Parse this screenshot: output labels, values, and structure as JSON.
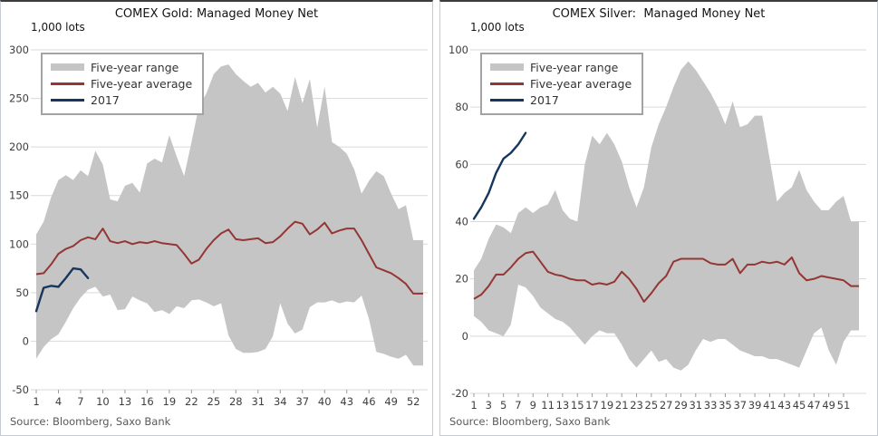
{
  "legend": {
    "items": [
      {
        "label": "Five-year range",
        "swatch": "area",
        "color": "#c5c5c5"
      },
      {
        "label": "Five-year average",
        "swatch": "line",
        "color": "#943634"
      },
      {
        "label": "2017",
        "swatch": "line",
        "color": "#17365d"
      }
    ]
  },
  "chart_data": [
    {
      "id": "gold",
      "type": "area",
      "title": "COMEX Gold: Managed Money Net",
      "units_label": "1,000 lots",
      "source": "Source: Bloomberg, Saxo Bank",
      "xlabel": "",
      "ylabel": "1,000 lots",
      "ylim": [
        -50,
        300
      ],
      "yticks": [
        300,
        250,
        200,
        150,
        100,
        50,
        0,
        -50
      ],
      "xticks": [
        1,
        4,
        7,
        10,
        13,
        16,
        19,
        22,
        25,
        28,
        31,
        34,
        37,
        40,
        43,
        46,
        49,
        52
      ],
      "grid": true,
      "grid_color": "#d9d9d9",
      "tick_mark_color": "#9b9b9b",
      "legend_position": "top-left",
      "x": [
        1,
        2,
        3,
        4,
        5,
        6,
        7,
        8,
        9,
        10,
        11,
        12,
        13,
        14,
        15,
        16,
        17,
        18,
        19,
        20,
        21,
        22,
        23,
        24,
        25,
        26,
        27,
        28,
        29,
        30,
        31,
        32,
        33,
        34,
        35,
        36,
        37,
        38,
        39,
        40,
        41,
        42,
        43,
        44,
        45,
        46,
        47,
        48,
        49,
        50,
        51,
        52
      ],
      "series": [
        {
          "name": "Five-year range",
          "type": "area",
          "color": "#c5c5c5",
          "upper": [
            110,
            123,
            148,
            166,
            171,
            166,
            176,
            170,
            196,
            182,
            146,
            144,
            160,
            163,
            153,
            183,
            188,
            184,
            212,
            190,
            170,
            205,
            242,
            255,
            275,
            283,
            285,
            275,
            268,
            262,
            266,
            256,
            262,
            255,
            237,
            272,
            245,
            270,
            220,
            262,
            205,
            200,
            193,
            177,
            152,
            165,
            175,
            170,
            152,
            136,
            140,
            104
          ],
          "lower": [
            -18,
            -6,
            2,
            7,
            20,
            34,
            45,
            53,
            56,
            46,
            48,
            32,
            33,
            46,
            42,
            39,
            30,
            32,
            28,
            36,
            34,
            42,
            43,
            40,
            36,
            39,
            6,
            -8,
            -12,
            -12,
            -11,
            -8,
            5,
            39,
            18,
            8,
            12,
            35,
            40,
            40,
            42,
            39,
            41,
            40,
            47,
            23,
            -11,
            -13,
            -16,
            -18,
            -14,
            -25
          ]
        },
        {
          "name": "Five-year average",
          "type": "line",
          "color": "#943634",
          "values": [
            69,
            70,
            79,
            90,
            95,
            98,
            104,
            107,
            105,
            116,
            103,
            101,
            103,
            100,
            102,
            101,
            103,
            101,
            100,
            99,
            90,
            80,
            84,
            95,
            104,
            111,
            115,
            105,
            104,
            105,
            106,
            101,
            102,
            108,
            116,
            123,
            121,
            110,
            115,
            122,
            111,
            114,
            116,
            116,
            104,
            90,
            76,
            73,
            70,
            65,
            59,
            49
          ]
        },
        {
          "name": "2017",
          "type": "line",
          "color": "#17365d",
          "x": [
            1,
            2,
            3,
            4,
            5,
            6,
            7,
            8
          ],
          "values": [
            31,
            55,
            57,
            56,
            65,
            75,
            74,
            65
          ]
        }
      ]
    },
    {
      "id": "silver",
      "type": "area",
      "title": "COMEX Silver:  Managed Money Net",
      "units_label": "1,000 lots",
      "source": "Source: Bloomberg, Saxo Bank",
      "xlabel": "",
      "ylabel": "1,000 lots",
      "ylim": [
        -20,
        100
      ],
      "yticks": [
        100,
        80,
        60,
        40,
        20,
        0,
        -20
      ],
      "xticks": [
        1,
        3,
        5,
        7,
        9,
        11,
        13,
        15,
        17,
        19,
        21,
        23,
        25,
        27,
        29,
        31,
        33,
        35,
        37,
        39,
        41,
        43,
        45,
        47,
        49,
        51
      ],
      "grid": true,
      "grid_color": "#d9d9d9",
      "tick_mark_color": "#9b9b9b",
      "legend_position": "top-left",
      "x": [
        1,
        2,
        3,
        4,
        5,
        6,
        7,
        8,
        9,
        10,
        11,
        12,
        13,
        14,
        15,
        16,
        17,
        18,
        19,
        20,
        21,
        22,
        23,
        24,
        25,
        26,
        27,
        28,
        29,
        30,
        31,
        32,
        33,
        34,
        35,
        36,
        37,
        38,
        39,
        40,
        41,
        42,
        43,
        44,
        45,
        46,
        47,
        48,
        49,
        50,
        51,
        52
      ],
      "series": [
        {
          "name": "Five-year range",
          "type": "area",
          "color": "#c5c5c5",
          "upper": [
            23,
            27,
            34,
            39,
            38,
            36,
            43,
            45,
            43,
            45,
            46,
            51,
            44,
            41,
            40,
            60,
            70,
            67,
            71,
            67,
            61,
            52,
            45,
            52,
            66,
            74,
            80,
            87,
            93,
            96,
            93,
            89,
            85,
            80,
            74,
            82,
            73,
            74,
            77,
            77,
            62,
            47,
            50,
            52,
            58,
            51,
            47,
            44,
            44,
            47,
            49,
            40
          ],
          "lower": [
            7,
            5,
            2,
            1,
            0,
            4,
            18,
            17,
            14,
            10,
            8,
            6,
            5,
            3,
            0,
            -3,
            0,
            2,
            1,
            1,
            -3,
            -8,
            -11,
            -8,
            -5,
            -9,
            -8,
            -11,
            -12,
            -10,
            -5,
            -1,
            -2,
            -1,
            -1,
            -3,
            -5,
            -6,
            -7,
            -7,
            -8,
            -8,
            -9,
            -10,
            -11,
            -5,
            1,
            3,
            -5,
            -10,
            -2,
            2
          ]
        },
        {
          "name": "Five-year average",
          "type": "line",
          "color": "#943634",
          "values": [
            13,
            14.5,
            17.5,
            21.5,
            21.5,
            24,
            27,
            29,
            29.5,
            26,
            22.5,
            21.5,
            21,
            20,
            19.5,
            19.5,
            18,
            18.5,
            18,
            19,
            22.5,
            20,
            16.5,
            12,
            15,
            18.5,
            21,
            26,
            27,
            27,
            27,
            27,
            25.5,
            25,
            25,
            27,
            22,
            25,
            25,
            26,
            25.5,
            26,
            25,
            27.5,
            22,
            19.5,
            20,
            21,
            20.5,
            20,
            19.5,
            17.5
          ]
        },
        {
          "name": "2017",
          "type": "line",
          "color": "#17365d",
          "x": [
            1,
            2,
            3,
            4,
            5,
            6,
            7,
            8
          ],
          "values": [
            41,
            45,
            50,
            57,
            62,
            64,
            67,
            71
          ]
        }
      ]
    }
  ]
}
